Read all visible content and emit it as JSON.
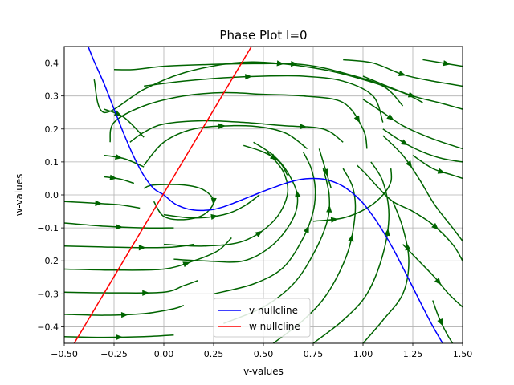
{
  "chart_data": {
    "type": "line",
    "title": "Phase Plot I=0",
    "xlabel": "v-values",
    "ylabel": "w-values",
    "xlim": [
      -0.5,
      1.5
    ],
    "ylim": [
      -0.45,
      0.45
    ],
    "xticks": [
      -0.5,
      -0.25,
      0.0,
      0.25,
      0.5,
      0.75,
      1.0,
      1.25,
      1.5
    ],
    "xtick_labels": [
      "−0.50",
      "−0.25",
      "0.00",
      "0.25",
      "0.50",
      "0.75",
      "1.00",
      "1.25",
      "1.50"
    ],
    "yticks": [
      -0.4,
      -0.3,
      -0.2,
      -0.1,
      0.0,
      0.1,
      0.2,
      0.3,
      0.4
    ],
    "ytick_labels": [
      "−0.4",
      "−0.3",
      "−0.2",
      "−0.1",
      "0.0",
      "0.1",
      "0.2",
      "0.3",
      "0.4"
    ],
    "grid": true,
    "legend_position": "lower-center",
    "series": [
      {
        "name": "v nullcline",
        "color": "#0000ff",
        "type": "line",
        "x": [
          -0.38,
          -0.35,
          -0.3,
          -0.25,
          -0.2,
          -0.15,
          -0.1,
          -0.05,
          0.0,
          0.05,
          0.1,
          0.15,
          0.2,
          0.25,
          0.3,
          0.35,
          0.4,
          0.45,
          0.5,
          0.55,
          0.6,
          0.65,
          0.7,
          0.75,
          0.8,
          0.85,
          0.9,
          0.95,
          1.0,
          1.05,
          1.1,
          1.15,
          1.2,
          1.25,
          1.3,
          1.35,
          1.4
        ],
        "y": [
          0.45,
          0.405,
          0.337,
          0.26,
          0.184,
          0.115,
          0.058,
          0.019,
          0.0,
          -0.025,
          -0.039,
          -0.046,
          -0.047,
          -0.044,
          -0.036,
          -0.025,
          -0.013,
          -0.001,
          0.011,
          0.022,
          0.033,
          0.042,
          0.048,
          0.05,
          0.048,
          0.04,
          0.026,
          0.004,
          -0.025,
          -0.064,
          -0.11,
          -0.162,
          -0.22,
          -0.28,
          -0.34,
          -0.398,
          -0.45
        ]
      },
      {
        "name": "w nullcline",
        "color": "#ff0000",
        "type": "line",
        "x": [
          -0.45,
          0.44
        ],
        "y": [
          -0.45,
          0.45
        ]
      }
    ],
    "streamlines": {
      "color": "#006400",
      "lines": [
        {
          "x": [
            -0.3,
            -0.2,
            -0.1
          ],
          "y": [
            0.12,
            0.11,
            0.085
          ],
          "arrow": 0.35
        },
        {
          "x": [
            -0.3,
            -0.22,
            -0.15
          ],
          "y": [
            0.055,
            0.048,
            0.035
          ],
          "arrow": 0.3
        },
        {
          "x": [
            -0.3,
            -0.2,
            -0.1
          ],
          "y": [
            0.26,
            0.235,
            0.175
          ],
          "arrow": 0.3
        },
        {
          "x": [
            -0.5,
            -0.35,
            -0.22,
            -0.12
          ],
          "y": [
            -0.02,
            -0.025,
            -0.03,
            -0.04
          ],
          "arrow": 0.45
        },
        {
          "x": [
            -0.5,
            -0.3,
            -0.1,
            0.05
          ],
          "y": [
            -0.085,
            -0.095,
            -0.1,
            -0.1
          ],
          "arrow": 0.5
        },
        {
          "x": [
            -0.5,
            -0.3,
            -0.1,
            0.05,
            0.15
          ],
          "y": [
            -0.155,
            -0.158,
            -0.16,
            -0.158,
            -0.15
          ],
          "arrow": 0.6
        },
        {
          "x": [
            -0.5,
            -0.25,
            0.0,
            0.15,
            0.27,
            0.34
          ],
          "y": [
            -0.225,
            -0.228,
            -0.225,
            -0.2,
            -0.17,
            -0.13
          ],
          "arrow": 0.7
        },
        {
          "x": [
            -0.5,
            -0.25,
            0.0,
            0.1,
            0.17
          ],
          "y": [
            -0.295,
            -0.297,
            -0.295,
            -0.275,
            -0.26
          ],
          "arrow": 0.6
        },
        {
          "x": [
            -0.5,
            -0.3,
            -0.1,
            0.05,
            0.1
          ],
          "y": [
            -0.362,
            -0.365,
            -0.36,
            -0.345,
            -0.335
          ],
          "arrow": 0.5
        },
        {
          "x": [
            -0.5,
            -0.3,
            -0.1,
            0.05
          ],
          "y": [
            -0.43,
            -0.432,
            -0.43,
            -0.425
          ],
          "arrow": 0.5
        },
        {
          "x": [
            -0.1,
            -0.05,
            0.1,
            0.2,
            0.25,
            0.2,
            0.1,
            0.0,
            -0.05
          ],
          "y": [
            0.02,
            0.03,
            0.03,
            0.015,
            -0.02,
            -0.06,
            -0.075,
            -0.065,
            -0.02
          ],
          "arrow": 0.5
        },
        {
          "x": [
            0.0,
            0.15,
            0.3,
            0.4,
            0.48
          ],
          "y": [
            -0.06,
            -0.07,
            -0.06,
            -0.035,
            0.0
          ],
          "arrow": 0.5
        },
        {
          "x": [
            0.0,
            0.2,
            0.4,
            0.55,
            0.62,
            0.6,
            0.52
          ],
          "y": [
            -0.15,
            -0.155,
            -0.14,
            -0.08,
            0.0,
            0.07,
            0.13
          ],
          "arrow": 0.5
        },
        {
          "x": [
            0.05,
            0.2,
            0.4,
            0.55,
            0.65,
            0.67,
            0.62,
            0.55,
            0.45
          ],
          "y": [
            -0.195,
            -0.2,
            -0.2,
            -0.15,
            -0.07,
            0.0,
            0.07,
            0.12,
            0.16
          ],
          "arrow": 0.7
        },
        {
          "x": [
            0.25,
            0.45,
            0.6,
            0.7,
            0.75,
            0.76,
            0.74,
            0.7
          ],
          "y": [
            -0.3,
            -0.27,
            -0.22,
            -0.13,
            -0.05,
            0.02,
            0.08,
            0.13
          ],
          "arrow": 0.6
        },
        {
          "x": [
            0.3,
            0.5,
            0.65,
            0.75,
            0.82,
            0.83,
            0.8
          ],
          "y": [
            -0.39,
            -0.34,
            -0.27,
            -0.18,
            -0.08,
            0.0,
            0.08
          ],
          "arrow": 0.8
        },
        {
          "x": [
            0.55,
            0.7,
            0.82,
            0.92,
            0.96,
            0.95,
            0.9
          ],
          "y": [
            -0.45,
            -0.38,
            -0.3,
            -0.18,
            -0.06,
            0.02,
            0.08
          ],
          "arrow": 0.65
        },
        {
          "x": [
            0.75,
            0.9,
            1.02,
            1.1,
            1.13,
            1.1,
            1.04
          ],
          "y": [
            -0.45,
            -0.38,
            -0.3,
            -0.18,
            -0.06,
            0.04,
            0.1
          ],
          "arrow": 0.65
        },
        {
          "x": [
            0.75,
            0.9,
            1.02,
            1.1,
            1.14,
            1.14
          ],
          "y": [
            -0.08,
            -0.07,
            -0.04,
            -0.0,
            0.04,
            0.08
          ],
          "arrow": 0.2
        },
        {
          "x": [
            1.0,
            1.1,
            1.2,
            1.23,
            1.2,
            1.15
          ],
          "y": [
            -0.45,
            -0.38,
            -0.3,
            -0.2,
            -0.1,
            -0.02
          ],
          "arrow": 0.7
        },
        {
          "x": [
            -0.1,
            0.0,
            0.15,
            0.35,
            0.5,
            0.62,
            0.72
          ],
          "y": [
            0.09,
            0.16,
            0.2,
            0.21,
            0.205,
            0.185,
            0.14
          ],
          "arrow": 0.5
        },
        {
          "x": [
            -0.17,
            -0.1,
            0.0,
            0.2,
            0.4,
            0.6,
            0.8,
            0.9
          ],
          "y": [
            0.16,
            0.19,
            0.215,
            0.225,
            0.22,
            0.21,
            0.2,
            0.16
          ],
          "arrow": 0.8
        },
        {
          "x": [
            -0.27,
            -0.25,
            -0.1,
            0.1,
            0.3,
            0.5,
            0.7,
            0.9,
            1.0,
            1.02
          ],
          "y": [
            0.16,
            0.22,
            0.27,
            0.3,
            0.31,
            0.305,
            0.3,
            0.28,
            0.2,
            0.14
          ],
          "arrow": 0.9
        },
        {
          "x": [
            -0.1,
            0.1,
            0.3,
            0.5,
            0.7,
            0.9,
            1.05,
            1.1
          ],
          "y": [
            0.33,
            0.345,
            0.355,
            0.36,
            0.36,
            0.345,
            0.3,
            0.22
          ],
          "arrow": 0.4
        },
        {
          "x": [
            -0.25,
            -0.15,
            0.0,
            0.2,
            0.45,
            0.7,
            0.9,
            1.1,
            1.2
          ],
          "y": [
            0.38,
            0.38,
            0.39,
            0.395,
            0.398,
            0.395,
            0.37,
            0.33,
            0.27
          ],
          "arrow": 0.6
        },
        {
          "x": [
            -0.35,
            -0.3,
            -0.1,
            0.1,
            0.35,
            0.55,
            0.8,
            1.0,
            1.2,
            1.3
          ],
          "y": [
            0.35,
            0.25,
            0.32,
            0.37,
            0.4,
            0.4,
            0.38,
            0.35,
            0.31,
            0.28
          ],
          "arrow": 0.6
        },
        {
          "x": [
            0.9,
            1.05,
            1.2,
            1.35,
            1.5
          ],
          "y": [
            0.41,
            0.4,
            0.365,
            0.345,
            0.33
          ],
          "arrow": 0.5
        },
        {
          "x": [
            1.3,
            1.4,
            1.5
          ],
          "y": [
            0.41,
            0.4,
            0.39
          ],
          "arrow": 0.6
        },
        {
          "x": [
            1.0,
            1.1,
            1.25,
            1.38,
            1.5
          ],
          "y": [
            0.36,
            0.335,
            0.3,
            0.28,
            0.26
          ],
          "arrow": 0.5
        },
        {
          "x": [
            1.0,
            1.1,
            1.2,
            1.35,
            1.5
          ],
          "y": [
            0.29,
            0.25,
            0.21,
            0.17,
            0.14
          ],
          "arrow": 0.3
        },
        {
          "x": [
            1.1,
            1.2,
            1.3,
            1.4,
            1.5
          ],
          "y": [
            0.2,
            0.16,
            0.13,
            0.11,
            0.1
          ],
          "arrow": 0.3
        },
        {
          "x": [
            1.25,
            1.35,
            1.45,
            1.5
          ],
          "y": [
            0.12,
            0.08,
            0.06,
            0.05
          ],
          "arrow": 0.6
        },
        {
          "x": [
            1.1,
            1.2,
            1.28,
            1.36,
            1.45,
            1.5
          ],
          "y": [
            0.18,
            0.12,
            0.05,
            -0.03,
            -0.1,
            -0.14
          ],
          "arrow": 0.3
        },
        {
          "x": [
            0.97,
            1.02,
            1.08,
            1.15,
            1.25,
            1.35,
            1.45,
            1.5
          ],
          "y": [
            0.09,
            0.06,
            0.02,
            -0.02,
            -0.05,
            -0.09,
            -0.15,
            -0.2
          ],
          "arrow": 0.7
        },
        {
          "x": [
            1.2,
            1.28,
            1.36,
            1.43,
            1.5
          ],
          "y": [
            -0.15,
            -0.2,
            -0.25,
            -0.3,
            -0.34
          ],
          "arrow": 0.6
        },
        {
          "x": [
            1.35,
            1.38,
            1.42,
            1.45
          ],
          "y": [
            -0.32,
            -0.37,
            -0.42,
            -0.45
          ],
          "arrow": 0.5
        },
        {
          "x": [
            0.78,
            0.8,
            0.82,
            0.84
          ],
          "y": [
            0.14,
            0.1,
            0.06,
            0.02
          ],
          "arrow": 0.6
        },
        {
          "x": [
            0.4,
            0.5,
            0.58,
            0.62
          ],
          "y": [
            0.15,
            0.13,
            0.1,
            0.06
          ],
          "arrow": 0.6
        }
      ]
    }
  }
}
